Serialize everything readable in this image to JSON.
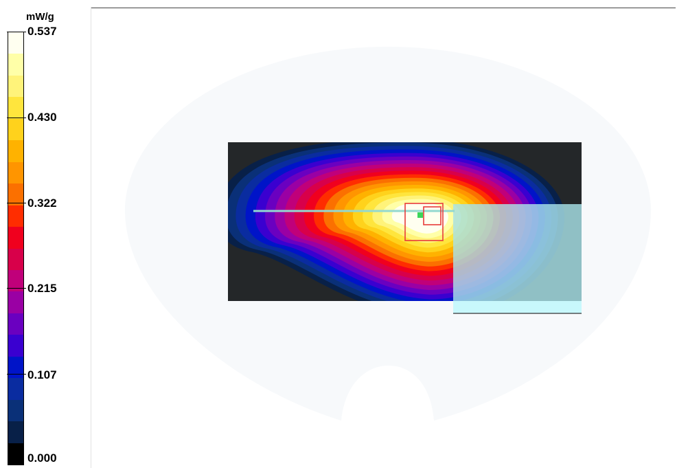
{
  "colorbar": {
    "unit": "mW/g",
    "ticks": [
      "0.537",
      "0.430",
      "0.322",
      "0.215",
      "0.107",
      "0.000"
    ],
    "band_colors": [
      "#fffff0",
      "#ffffa8",
      "#fff37a",
      "#ffe53d",
      "#ffd21c",
      "#ffb200",
      "#ff9500",
      "#fb7000",
      "#ff2d00",
      "#f0001e",
      "#d8004a",
      "#c0007a",
      "#9a00a4",
      "#6a00c0",
      "#3a00d0",
      "#0014c8",
      "#0a2ca0",
      "#0a3078",
      "#082048",
      "#000000"
    ]
  },
  "colors": {
    "phantom": "#f7f9fb",
    "scan_area": "#242729",
    "overlay": "#a8e2e8",
    "overlay_strip": "#c8f8fc",
    "marker": "#e83a3a",
    "probe_line": "#93d8d0",
    "probe_tip": "#3bd65a"
  }
}
